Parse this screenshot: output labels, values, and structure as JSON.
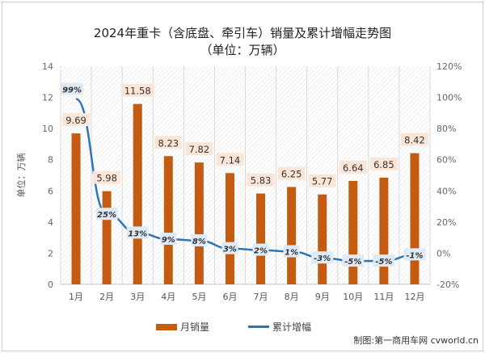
{
  "chart_data": {
    "type": "bar+line",
    "title": "2024年重卡（含底盘、牵引车）销量及累计增幅走势图",
    "subtitle": "（单位：万辆）",
    "ylabel": "单位：万辆",
    "categories": [
      "1月",
      "2月",
      "3月",
      "4月",
      "5月",
      "6月",
      "7月",
      "8月",
      "9月",
      "10月",
      "11月",
      "12月"
    ],
    "series": [
      {
        "name": "月销量",
        "type": "bar",
        "axis": "left",
        "color": "#c55a11",
        "values": [
          9.69,
          5.98,
          11.58,
          8.23,
          7.82,
          7.14,
          5.83,
          6.25,
          5.77,
          6.64,
          6.85,
          8.42
        ],
        "labels": [
          "9.69",
          "5.98",
          "11.58",
          "8.23",
          "7.82",
          "7.14",
          "5.83",
          "6.25",
          "5.77",
          "6.64",
          "6.85",
          "8.42"
        ]
      },
      {
        "name": "累计增幅",
        "type": "line",
        "axis": "right",
        "color": "#2e75b6",
        "values": [
          99,
          25,
          13,
          9,
          8,
          3,
          2,
          1,
          -3,
          -5,
          -5,
          -1
        ],
        "labels": [
          "99%",
          "25%",
          "13%",
          "9%",
          "8%",
          "3%",
          "2%",
          "1%",
          "-3%",
          "-5%",
          "-5%",
          "-1%"
        ]
      }
    ],
    "ylim": [
      0,
      14
    ],
    "yticks": [
      "0",
      "2",
      "4",
      "6",
      "8",
      "10",
      "12",
      "14"
    ],
    "y2lim": [
      -20,
      120
    ],
    "y2ticks": [
      "-20%",
      "0%",
      "20%",
      "40%",
      "60%",
      "80%",
      "100%",
      "120%"
    ],
    "legend": "bottom"
  },
  "credit": "制图:第一商用车网 cvworld.cn"
}
